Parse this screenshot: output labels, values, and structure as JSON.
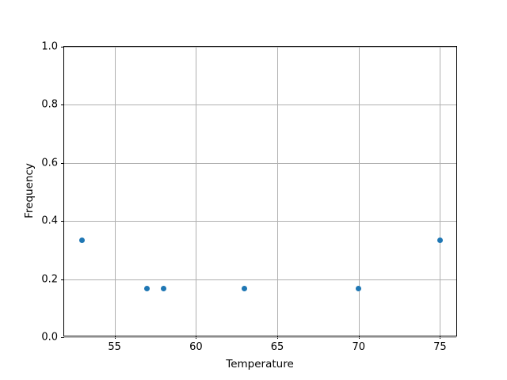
{
  "chart_data": {
    "type": "scatter",
    "title": "",
    "xlabel": "Temperature",
    "ylabel": "Frequency",
    "x": [
      53,
      57,
      58,
      63,
      70,
      75
    ],
    "y": [
      0.333,
      0.167,
      0.167,
      0.167,
      0.167,
      0.333
    ],
    "xlim": [
      51.9,
      76.1
    ],
    "ylim": [
      0.0,
      1.0
    ],
    "xticks": [
      55,
      60,
      65,
      70,
      75
    ],
    "xtick_labels": [
      "55",
      "60",
      "65",
      "70",
      "75"
    ],
    "yticks": [
      0.0,
      0.2,
      0.4,
      0.6,
      0.8,
      1.0
    ],
    "ytick_labels": [
      "0.0",
      "0.2",
      "0.4",
      "0.6",
      "0.8",
      "1.0"
    ],
    "grid": true,
    "legend": "none",
    "marker_color": "#1f77b4",
    "grid_color": "#b0b0b0",
    "spine_color": "#000000",
    "background_color": "#ffffff"
  }
}
